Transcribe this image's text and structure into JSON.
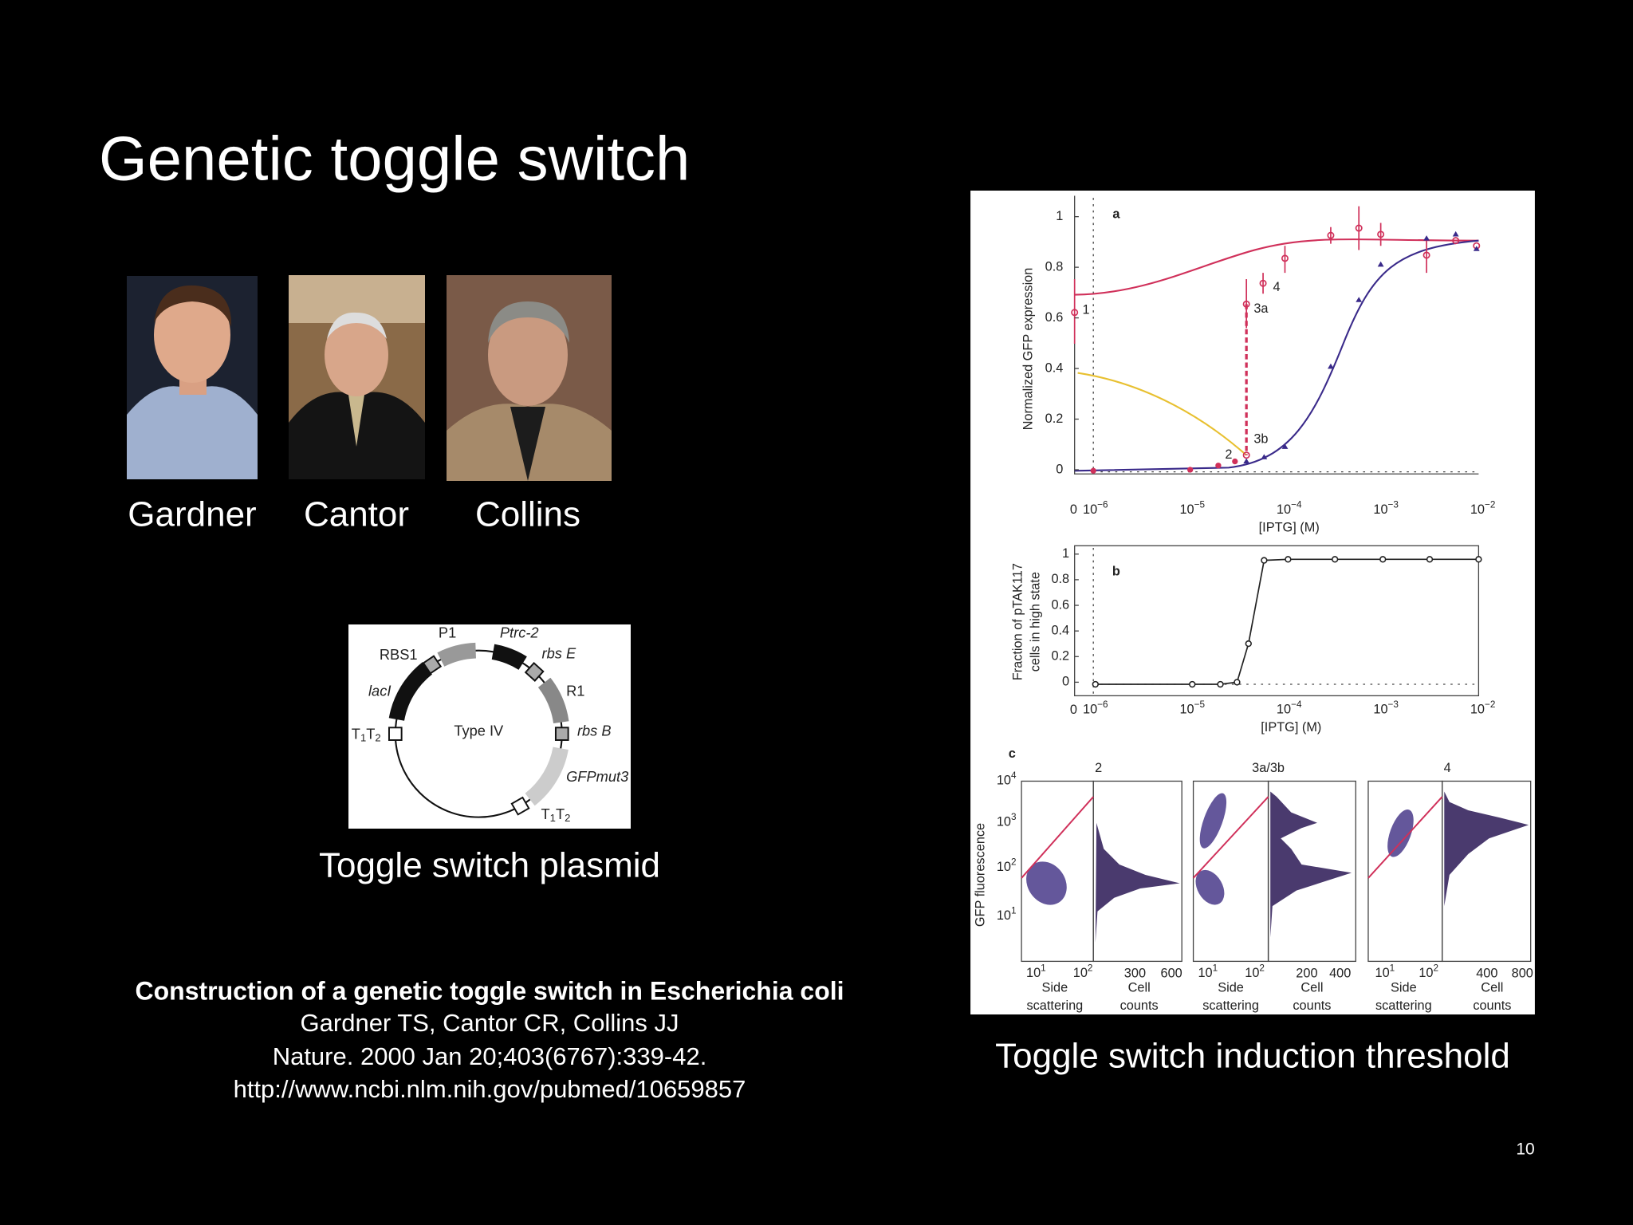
{
  "title": "Genetic toggle switch",
  "people": [
    "Gardner",
    "Cantor",
    "Collins"
  ],
  "plasmid": {
    "labels": {
      "p1": "P1",
      "ptrc": "Ptrc-2",
      "rbs1": "RBS1",
      "rbse": "rbs E",
      "r1": "R1",
      "lacl": "lacI",
      "type": "Type IV",
      "t1t2_left": "T1T2",
      "rbsb": "rbs B",
      "gfp": "GFPmut3",
      "t1t2_bottom": "T1T2"
    },
    "caption": "Toggle switch plasmid"
  },
  "citation": {
    "title": "Construction of a genetic toggle switch in Escherichia coli",
    "authors": "Gardner TS, Cantor CR, Collins JJ",
    "journal": "Nature. 2000 Jan 20;403(6767):339-42.",
    "url": "http://www.ncbi.nlm.nih.gov/pubmed/10659857"
  },
  "figure": {
    "panel_a": {
      "letter": "a",
      "y_label": "Normalized GFP expression",
      "x_label": "[IPTG] (M)",
      "yticks": [
        0,
        0.2,
        0.4,
        0.6,
        0.8,
        1
      ],
      "x_zero": "0",
      "xticks": [
        {
          "base": "10",
          "exp": "−6"
        },
        {
          "base": "10",
          "exp": "−5"
        },
        {
          "base": "10",
          "exp": "−4"
        },
        {
          "base": "10",
          "exp": "−3"
        },
        {
          "base": "10",
          "exp": "−2"
        }
      ],
      "annotations": [
        "1",
        "2",
        "3a",
        "3b",
        "4"
      ]
    },
    "panel_b": {
      "letter": "b",
      "y_label": [
        "Fraction of pTAK117",
        "cells in high state"
      ],
      "x_label": "[IPTG] (M)",
      "yticks": [
        0,
        0.2,
        0.4,
        0.6,
        0.8,
        1
      ],
      "x_zero": "0",
      "xticks": [
        {
          "base": "10",
          "exp": "−6"
        },
        {
          "base": "10",
          "exp": "−5"
        },
        {
          "base": "10",
          "exp": "−4"
        },
        {
          "base": "10",
          "exp": "−3"
        },
        {
          "base": "10",
          "exp": "−2"
        }
      ]
    },
    "panel_c": {
      "letter": "c",
      "y_label": "GFP fluorescence",
      "yticks": [
        {
          "base": "10",
          "exp": "4"
        },
        {
          "base": "10",
          "exp": "3"
        },
        {
          "base": "10",
          "exp": "2"
        },
        {
          "base": "10",
          "exp": "1"
        }
      ],
      "groups": [
        {
          "title": "2",
          "scatter_ticks": [
            {
              "base": "10",
              "exp": "1"
            },
            {
              "base": "10",
              "exp": "2"
            }
          ],
          "count_ticks": [
            300,
            600
          ],
          "scatter_label": [
            "Side",
            "scattering"
          ],
          "count_label": [
            "Cell",
            "counts"
          ]
        },
        {
          "title": "3a/3b",
          "scatter_ticks": [
            {
              "base": "10",
              "exp": "1"
            },
            {
              "base": "10",
              "exp": "2"
            }
          ],
          "count_ticks": [
            200,
            400
          ],
          "scatter_label": [
            "Side",
            "scattering"
          ],
          "count_label": [
            "Cell",
            "counts"
          ]
        },
        {
          "title": "4",
          "scatter_ticks": [
            {
              "base": "10",
              "exp": "1"
            },
            {
              "base": "10",
              "exp": "2"
            }
          ],
          "count_ticks": [
            400,
            800
          ],
          "scatter_label": [
            "Side",
            "scattering"
          ],
          "count_label": [
            "Cell",
            "counts"
          ]
        }
      ]
    }
  },
  "figure_caption": "Toggle switch induction threshold",
  "page_number": "10"
}
